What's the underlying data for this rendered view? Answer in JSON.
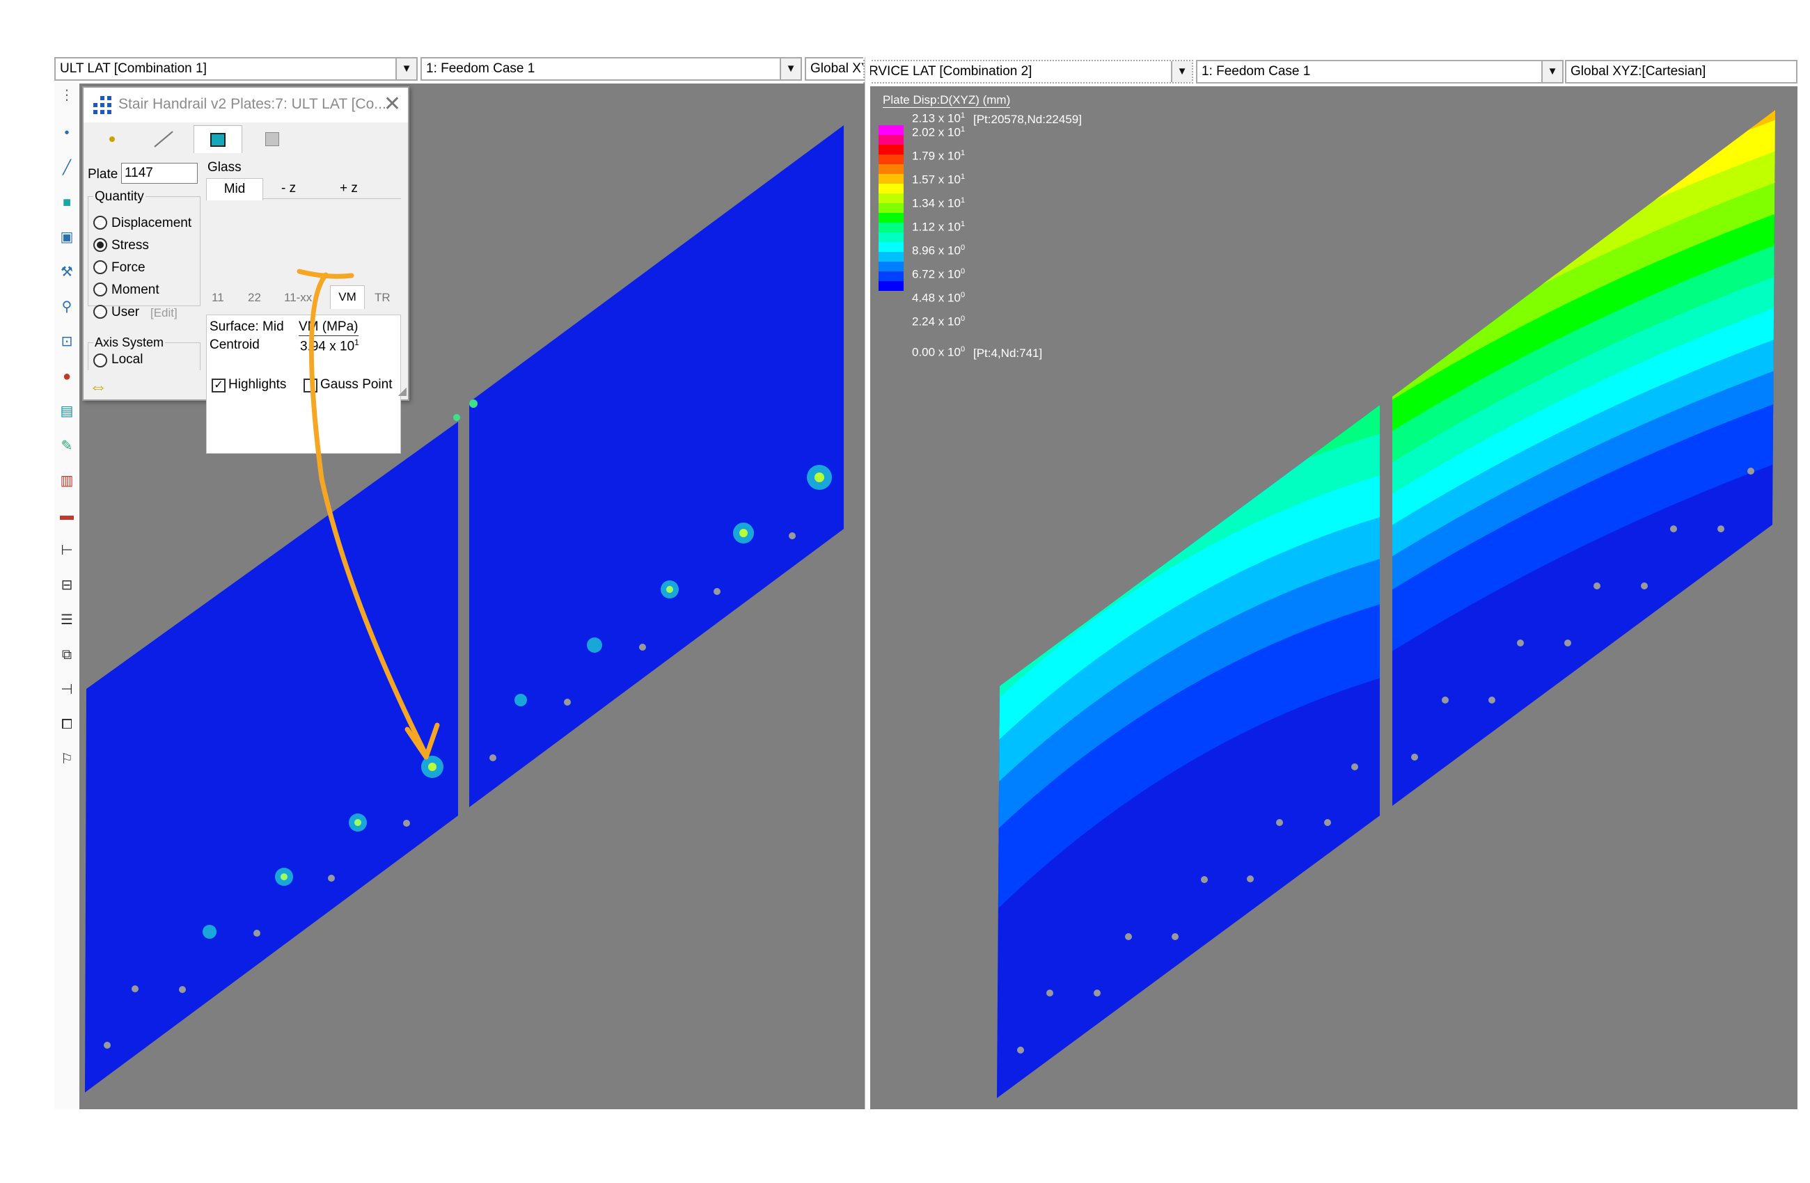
{
  "left_pane": {
    "load_selector": "ULT LAT [Combination 1]",
    "case_selector": "1: Feedom Case 1",
    "axes_selector": "Global XYZ"
  },
  "right_pane": {
    "load_selector": "RVICE LAT [Combination 2]",
    "case_selector": "1: Feedom Case 1",
    "axes_selector": "Global XYZ:[Cartesian]"
  },
  "dropdown_arrow": "▼",
  "dialog": {
    "title": "Stair Handrail v2 Plates:7: ULT LAT [Co...",
    "close": "✕",
    "plate_label": "Plate",
    "plate_value": "1147",
    "material": "Glass",
    "surface_buttons": [
      "Mid",
      "- z",
      "+ z"
    ],
    "quantity_label": "Quantity",
    "quantities": [
      "Displacement",
      "Stress",
      "Force",
      "Moment",
      "User"
    ],
    "selected_quantity": "Stress",
    "edit_label": "[Edit]",
    "component_tabs": [
      "11",
      "22",
      "11-xx",
      "VM",
      "TR"
    ],
    "active_component": "VM",
    "axis_system_label": "Axis System",
    "axis_option": "Local",
    "result_header_left": "Surface: Mid",
    "result_header_right": "VM (MPa)",
    "result_row_label": "Centroid",
    "result_value_mantissa": "3.94 x 10",
    "result_value_exp": "1",
    "highlights_label": "Highlights",
    "highlights_checked": true,
    "gauss_label": "Gauss Point",
    "gauss_checked": false
  },
  "legend": {
    "title": "Plate Disp:D(XYZ)  (mm)",
    "max_note": "[Pt:20578,Nd:22459]",
    "min_note": "[Pt:4,Nd:741]",
    "entries": [
      {
        "m": "2.13 x 10",
        "e": "1"
      },
      {
        "m": "2.02 x 10",
        "e": "1"
      },
      {
        "m": "1.79 x 10",
        "e": "1"
      },
      {
        "m": "1.57 x 10",
        "e": "1"
      },
      {
        "m": "1.34 x 10",
        "e": "1"
      },
      {
        "m": "1.12 x 10",
        "e": "1"
      },
      {
        "m": "8.96 x 10",
        "e": "0"
      },
      {
        "m": "6.72 x 10",
        "e": "0"
      },
      {
        "m": "4.48 x 10",
        "e": "0"
      },
      {
        "m": "2.24 x 10",
        "e": "0"
      },
      {
        "m": "0.00 x 10",
        "e": "0"
      }
    ],
    "colors": [
      "#ff00ff",
      "#ff0080",
      "#ff0000",
      "#ff4000",
      "#ff8000",
      "#ffc000",
      "#ffff00",
      "#c0ff00",
      "#80ff00",
      "#00ff00",
      "#00ff80",
      "#00ffc0",
      "#00ffff",
      "#00c0ff",
      "#0080ff",
      "#0040ff",
      "#0000ff"
    ]
  },
  "colors": {
    "viewport_bg": "#7f7f7f",
    "plate_blue": "#0a1ee6",
    "annotation_orange": "#f5a623"
  }
}
